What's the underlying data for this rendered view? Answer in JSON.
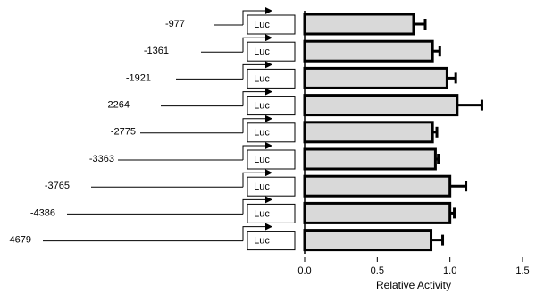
{
  "chart_data": {
    "type": "bar",
    "orientation": "horizontal",
    "categories": [
      "-977",
      "-1361",
      "-1921",
      "-2264",
      "-2775",
      "-3363",
      "-3765",
      "-4386",
      "-4679"
    ],
    "construct_label": "Luc",
    "values": [
      0.75,
      0.88,
      0.98,
      1.05,
      0.88,
      0.9,
      1.0,
      1.0,
      0.87
    ],
    "errors": [
      0.08,
      0.05,
      0.06,
      0.17,
      0.03,
      0.02,
      0.11,
      0.03,
      0.08
    ],
    "color": "#d9d9d9",
    "xlim": [
      0,
      1.5
    ],
    "xticks": [
      {
        "value": 0,
        "label": "0.0"
      },
      {
        "value": 0.5,
        "label": "0.5"
      },
      {
        "value": 1,
        "label": "1.0"
      },
      {
        "value": 1.5,
        "label": "1.5"
      }
    ],
    "xlabel": "Relative Activity"
  }
}
